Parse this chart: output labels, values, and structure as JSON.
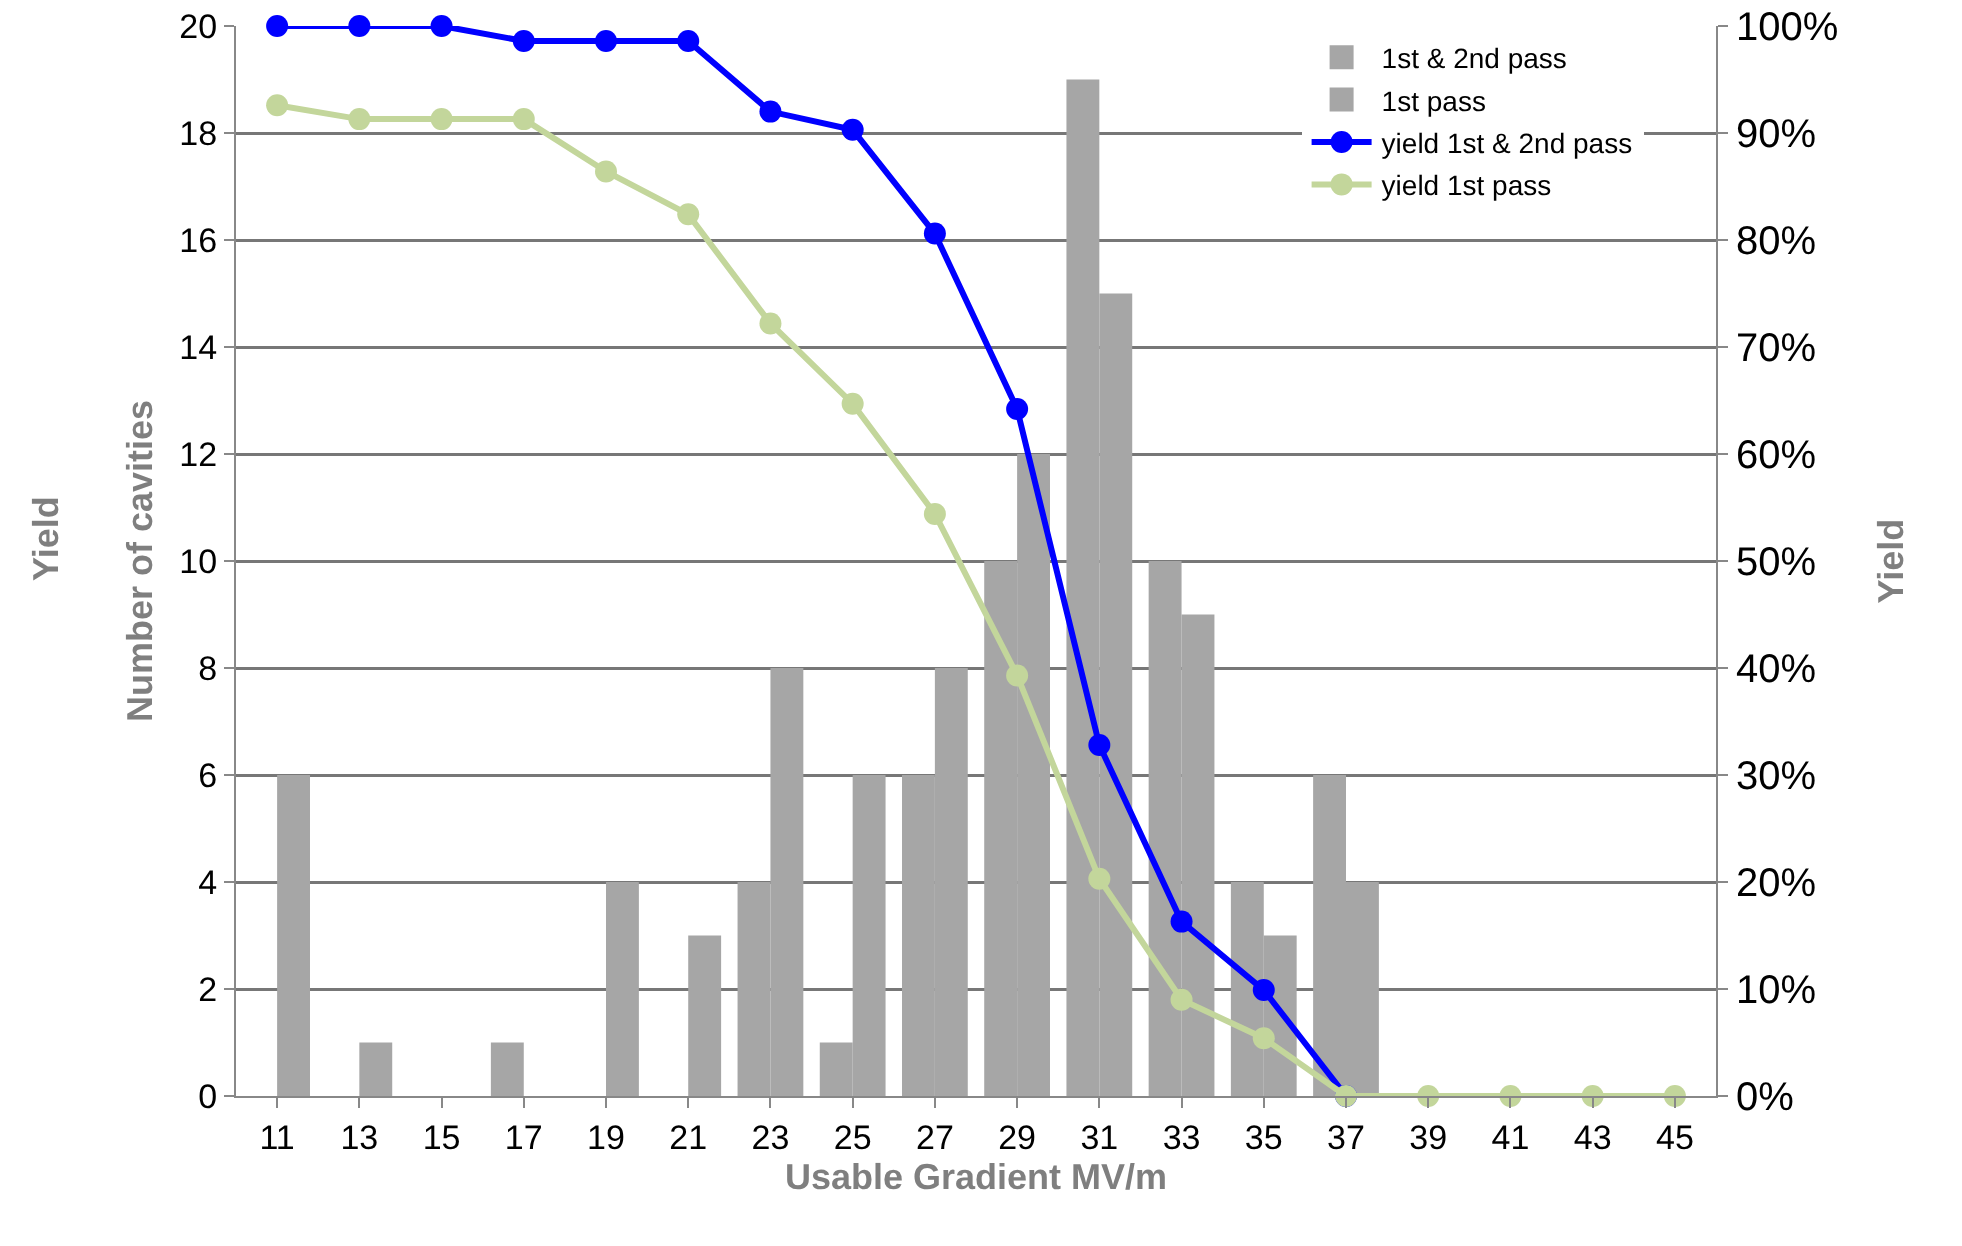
{
  "chart_data": {
    "type": "bar",
    "categories": [
      "11",
      "13",
      "15",
      "17",
      "19",
      "21",
      "23",
      "25",
      "27",
      "29",
      "31",
      "33",
      "35",
      "37",
      "39",
      "41",
      "43",
      "45"
    ],
    "series": [
      {
        "name": "1st & 2nd pass",
        "color": "#a6a6a6",
        "values": [
          0,
          0,
          0,
          1,
          0,
          0,
          4,
          1,
          6,
          10,
          19,
          10,
          4,
          6,
          0,
          0,
          0,
          0
        ]
      },
      {
        "name": "1st pass",
        "color": "#a6a6a6",
        "values": [
          6,
          1,
          0,
          0,
          4,
          3,
          8,
          6,
          8,
          12,
          15,
          9,
          3,
          4,
          0,
          0,
          0,
          0
        ]
      },
      {
        "name": "yield 1st & 2nd pass",
        "type": "line",
        "axis": "y2",
        "color": "#0000ff",
        "values": [
          100,
          100,
          100,
          98.6,
          98.6,
          98.6,
          92,
          90.3,
          80.6,
          64.2,
          32.8,
          16.3,
          9.9,
          0,
          null,
          null,
          null,
          null
        ]
      },
      {
        "name": "yield 1st pass",
        "type": "line",
        "axis": "y2",
        "color": "#c3d69b",
        "values": [
          92.6,
          91.3,
          91.3,
          91.3,
          86.4,
          82.4,
          72.2,
          64.7,
          54.4,
          39.3,
          20.3,
          9,
          5.4,
          0,
          0,
          0,
          0,
          0
        ]
      }
    ],
    "xlabel": "Usable Gradient MV/m",
    "ylabel": "Number of cavities",
    "y2label": "Yield",
    "annotations": [
      "Yield"
    ],
    "ylim": [
      0,
      20
    ],
    "yticks": [
      0,
      2,
      4,
      6,
      8,
      10,
      12,
      14,
      16,
      18,
      20
    ],
    "y2lim": [
      0,
      100
    ],
    "y2ticks": [
      {
        "value": 0,
        "label": "0%"
      },
      {
        "value": 10,
        "label": "10%"
      },
      {
        "value": 20,
        "label": "20%"
      },
      {
        "value": 30,
        "label": "30%"
      },
      {
        "value": 40,
        "label": "40%"
      },
      {
        "value": 50,
        "label": "50%"
      },
      {
        "value": 60,
        "label": "60%"
      },
      {
        "value": 70,
        "label": "70%"
      },
      {
        "value": 80,
        "label": "80%"
      },
      {
        "value": 90,
        "label": "90%"
      },
      {
        "value": 100,
        "label": "100%"
      }
    ],
    "grid": "y",
    "legend": "top right",
    "marker": "circle",
    "line_style": "solid"
  }
}
